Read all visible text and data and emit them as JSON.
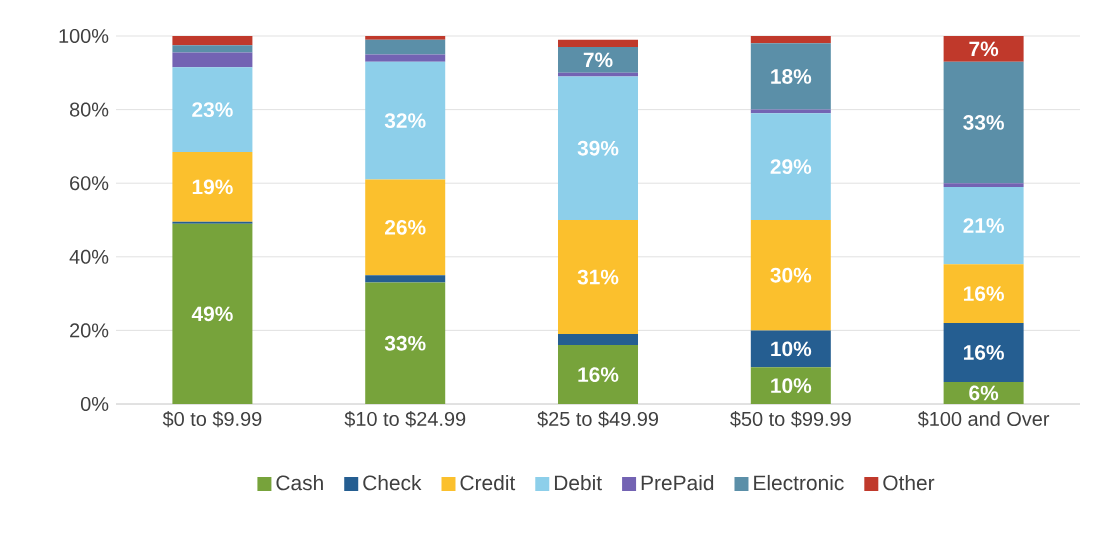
{
  "chart_data": {
    "type": "bar",
    "stacked": true,
    "categories": [
      "$0 to $9.99",
      "$10 to $24.99",
      "$25 to $49.99",
      "$50 to $99.99",
      "$100 and Over"
    ],
    "series": [
      {
        "name": "Cash",
        "color": "#77a33b",
        "values": [
          49,
          33,
          16,
          10,
          6
        ],
        "value_labels": [
          "49%",
          "33%",
          "16%",
          "10%",
          "6%"
        ]
      },
      {
        "name": "Check",
        "color": "#255e91",
        "values": [
          0.5,
          2,
          3,
          10,
          16
        ],
        "value_labels": [
          null,
          null,
          null,
          "10%",
          "16%"
        ]
      },
      {
        "name": "Credit",
        "color": "#fbc02d",
        "values": [
          19,
          26,
          31,
          30,
          16
        ],
        "value_labels": [
          "19%",
          "26%",
          "31%",
          "30%",
          "16%"
        ]
      },
      {
        "name": "Debit",
        "color": "#8dcfea",
        "values": [
          23,
          32,
          39,
          29,
          21
        ],
        "value_labels": [
          "23%",
          "32%",
          "39%",
          "29%",
          "21%"
        ]
      },
      {
        "name": "PrePaid",
        "color": "#7363b3",
        "values": [
          4,
          2,
          1,
          1,
          1
        ],
        "value_labels": [
          null,
          null,
          null,
          null,
          null
        ]
      },
      {
        "name": "Electronic",
        "color": "#5b8fa8",
        "values": [
          2,
          4,
          7,
          18,
          33
        ],
        "value_labels": [
          null,
          null,
          "7%",
          "18%",
          "33%"
        ]
      },
      {
        "name": "Other",
        "color": "#c0392b",
        "values": [
          2.5,
          1,
          2,
          2,
          7
        ],
        "value_labels": [
          null,
          null,
          null,
          null,
          "7%"
        ]
      }
    ],
    "ylim": [
      0,
      100
    ],
    "yticks": [
      {
        "value": 0,
        "label": "0%"
      },
      {
        "value": 20,
        "label": "20%"
      },
      {
        "value": 40,
        "label": "40%"
      },
      {
        "value": 60,
        "label": "60%"
      },
      {
        "value": 80,
        "label": "80%"
      },
      {
        "value": 100,
        "label": "100%"
      }
    ],
    "grid": "y",
    "legend": "bottom"
  }
}
